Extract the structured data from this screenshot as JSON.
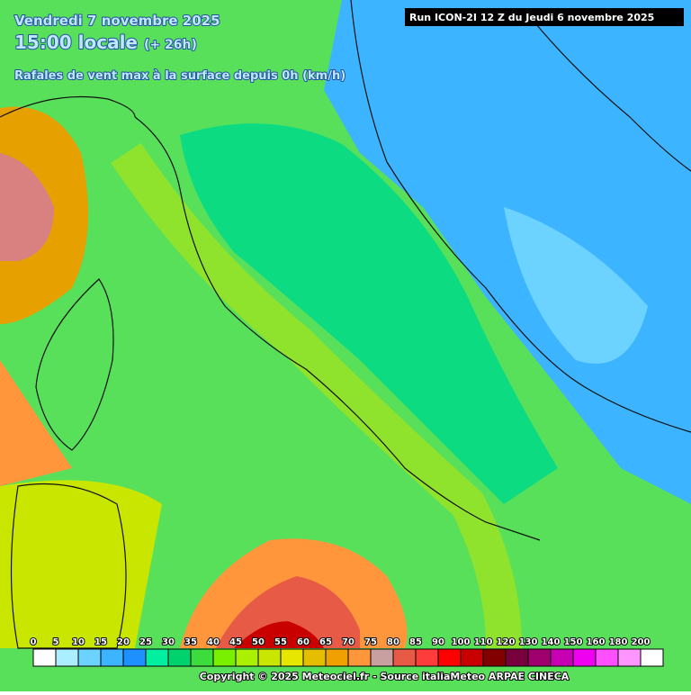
{
  "header": {
    "date": "Vendredi 7 novembre 2025",
    "time": "15:00 locale",
    "offset": "(+ 26h)",
    "subtitle": "Rafales de vent max à la surface depuis 0h (km/h)",
    "run": "Run ICON-2I 12 Z du Jeudi 6 novembre 2025"
  },
  "legend": {
    "items": [
      {
        "label": 0,
        "color": "#ffffff"
      },
      {
        "label": 5,
        "color": "#aaeeff"
      },
      {
        "label": 10,
        "color": "#6cd2ff"
      },
      {
        "label": 15,
        "color": "#3cb4ff"
      },
      {
        "label": 20,
        "color": "#1e90ff"
      },
      {
        "label": 25,
        "color": "#00f0a0"
      },
      {
        "label": 30,
        "color": "#00d26e"
      },
      {
        "label": 35,
        "color": "#3cdc3c"
      },
      {
        "label": 40,
        "color": "#78f000"
      },
      {
        "label": 45,
        "color": "#aaf000"
      },
      {
        "label": 50,
        "color": "#c8e600"
      },
      {
        "label": 55,
        "color": "#e6e600"
      },
      {
        "label": 60,
        "color": "#e6be00"
      },
      {
        "label": 65,
        "color": "#f0a000"
      },
      {
        "label": 70,
        "color": "#ff963c"
      },
      {
        "label": 75,
        "color": "#c8a0a0"
      },
      {
        "label": 80,
        "color": "#e65a46"
      },
      {
        "label": 85,
        "color": "#ff3c3c"
      },
      {
        "label": 90,
        "color": "#ff0000"
      },
      {
        "label": 100,
        "color": "#c80000"
      },
      {
        "label": 110,
        "color": "#820000"
      },
      {
        "label": 120,
        "color": "#78003c"
      },
      {
        "label": 130,
        "color": "#a0006e"
      },
      {
        "label": 140,
        "color": "#c800b4"
      },
      {
        "label": 150,
        "color": "#f000f0"
      },
      {
        "label": 160,
        "color": "#ff50ff"
      },
      {
        "label": 180,
        "color": "#ff96ff"
      },
      {
        "label": 200,
        "color": "#ffffff"
      }
    ]
  },
  "footer": {
    "copyright": "Copyright © 2025 Meteociel.fr - Source italiaMeteo ARPAE CINECA"
  }
}
